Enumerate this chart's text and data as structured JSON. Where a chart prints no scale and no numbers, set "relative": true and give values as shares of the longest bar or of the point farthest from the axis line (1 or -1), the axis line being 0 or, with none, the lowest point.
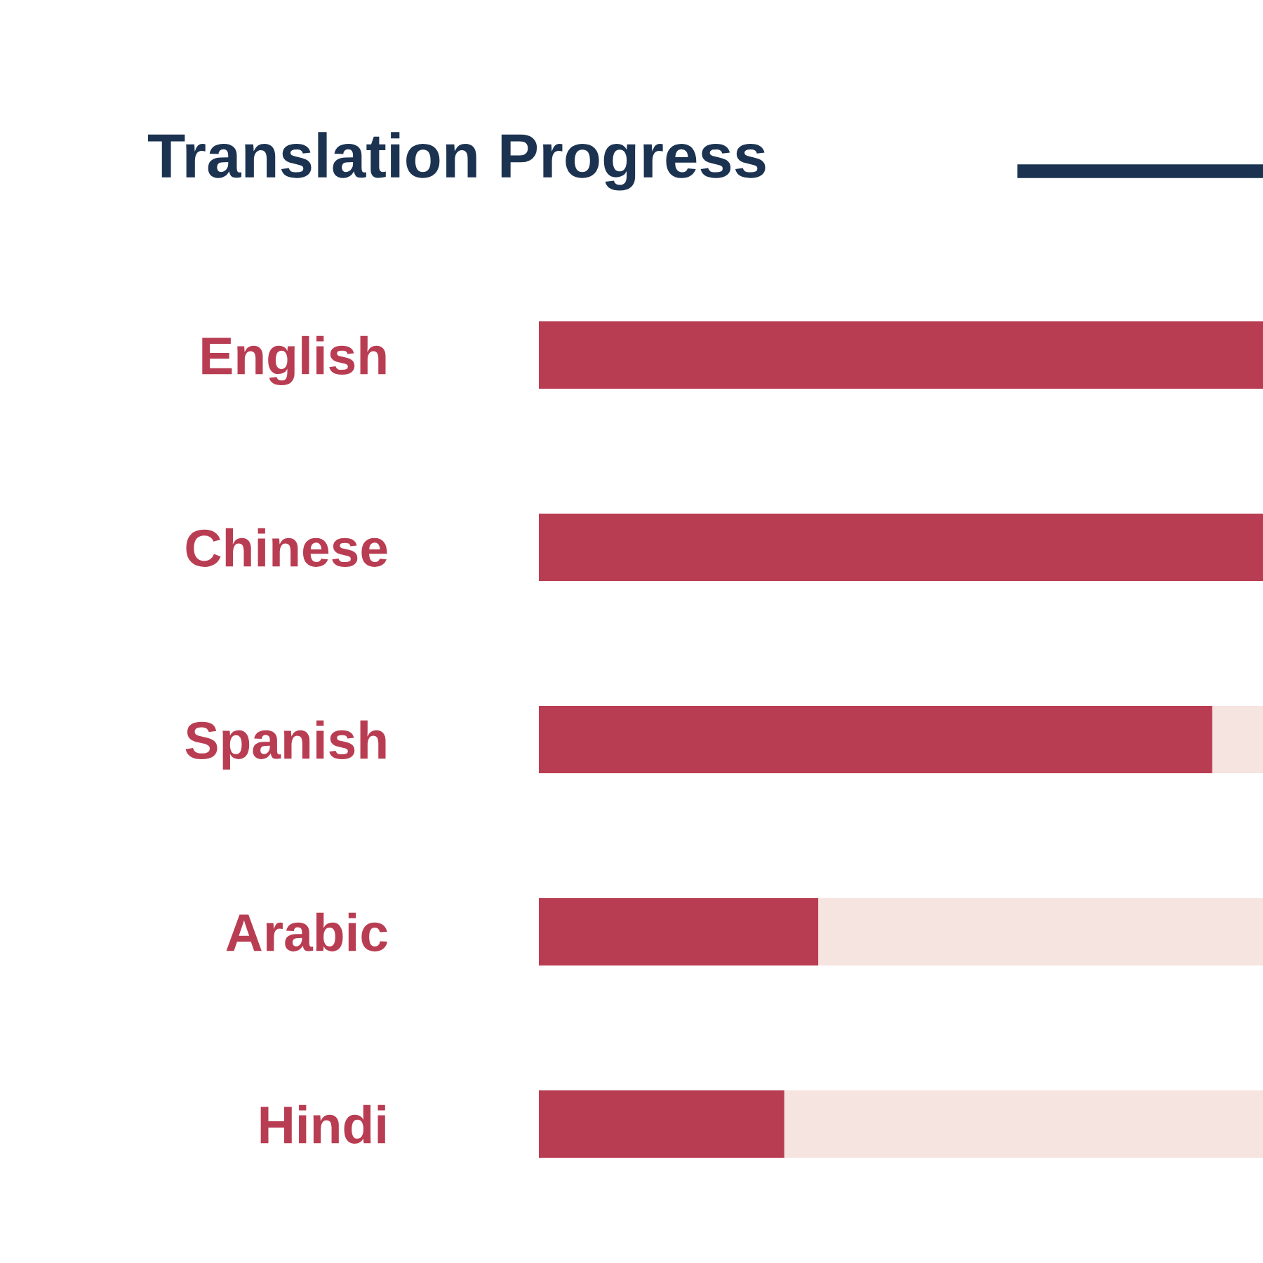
{
  "chart_data": {
    "type": "bar",
    "orientation": "horizontal",
    "stacked": true,
    "relative": true,
    "title": "Translation Progress",
    "categories": [
      "English",
      "Chinese",
      "Spanish",
      "Arabic",
      "Hindi"
    ],
    "series": [
      {
        "color": "#b93d52",
        "values": [
          1,
          1,
          0.93,
          0.386,
          0.339
        ]
      },
      {
        "color": "#f6e4e0",
        "values": [
          0,
          0,
          0.07,
          0.614,
          0.661
        ]
      }
    ],
    "grid": false,
    "legend": false
  }
}
